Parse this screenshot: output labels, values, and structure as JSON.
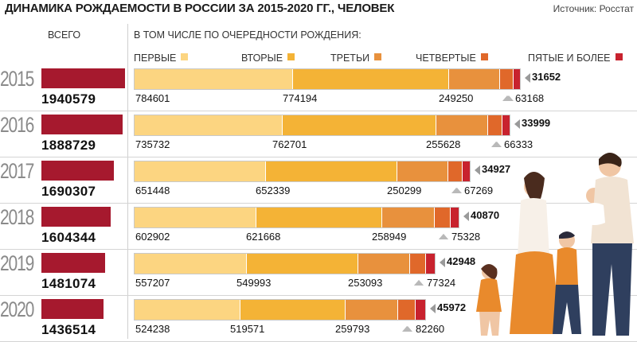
{
  "title": "ДИНАМИКА РОЖДАЕМОСТИ В РОССИИ ЗА 2015-2020 ГГ., ЧЕЛОВЕК",
  "source": "Источник: Росстат",
  "header": {
    "total": "ВСЕГО",
    "by_order": "В ТОМ ЧИСЛЕ ПО ОЧЕРЕДНОСТИ РОЖДЕНИЯ:"
  },
  "legend": [
    {
      "label": "ПЕРВЫЕ",
      "color": "#fcd581"
    },
    {
      "label": "ВТОРЫЕ",
      "color": "#f4b336"
    },
    {
      "label": "ТРЕТЬИ",
      "color": "#e8913d"
    },
    {
      "label": "ЧЕТВЕРТЫЕ",
      "color": "#e0682a"
    },
    {
      "label": "ПЯТЫЕ И БОЛЕЕ",
      "color": "#c8222e"
    }
  ],
  "colors": {
    "total_bar": "#a6192e"
  },
  "chart_data": {
    "type": "bar",
    "categories": [
      "2015",
      "2016",
      "2017",
      "2018",
      "2019",
      "2020"
    ],
    "totals": [
      1940579,
      1888729,
      1690307,
      1604344,
      1481074,
      1436514
    ],
    "series": [
      {
        "name": "ПЕРВЫЕ",
        "values": [
          784601,
          735732,
          651448,
          602902,
          557207,
          524238
        ]
      },
      {
        "name": "ВТОРЫЕ",
        "values": [
          774194,
          762701,
          652339,
          621668,
          549993,
          519571
        ]
      },
      {
        "name": "ТРЕТЬИ",
        "values": [
          249250,
          255628,
          250299,
          258949,
          253093,
          259793
        ]
      },
      {
        "name": "ЧЕТВЕРТЫЕ",
        "values": [
          63168,
          66333,
          67269,
          75328,
          77324,
          82260
        ]
      },
      {
        "name": "ПЯТЫЕ И БОЛЕЕ",
        "values": [
          31652,
          33999,
          34927,
          40870,
          42948,
          45972
        ]
      }
    ]
  }
}
